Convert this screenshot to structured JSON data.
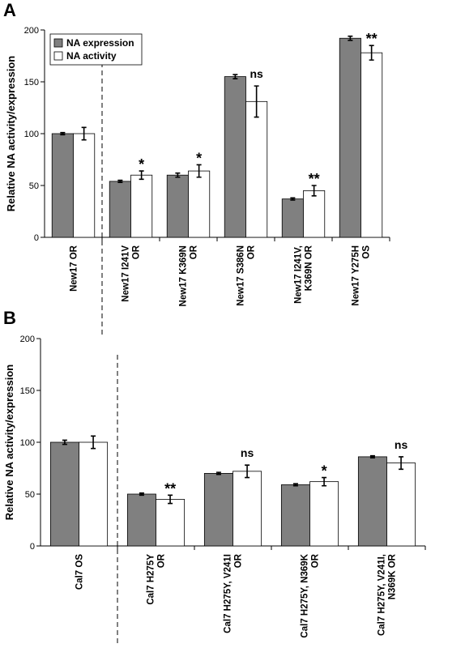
{
  "chart_data": [
    {
      "type": "bar",
      "title": "A",
      "y_label": "Relative NA activity/expression",
      "categories": [
        "New17 OR",
        "New17 I241V\nOR",
        "New17 K369N\nOR",
        "New17 S386N\nOR",
        "New17 I241V,\nK369N OR",
        "New17 Y275H\nOS"
      ],
      "series": [
        {
          "name": "NA expression",
          "color": "#808080",
          "values": [
            100,
            54,
            60,
            155,
            37,
            192
          ],
          "errors": [
            1,
            1,
            2,
            2,
            1,
            2
          ]
        },
        {
          "name": "NA activity",
          "color": "#ffffff",
          "values": [
            100,
            60,
            64,
            131,
            45,
            178
          ],
          "errors": [
            6,
            4,
            6,
            15,
            5,
            7
          ]
        }
      ],
      "annotations": [
        null,
        "*",
        "*",
        "ns",
        "**",
        "**"
      ],
      "ylim": [
        0,
        200
      ],
      "yticks": [
        0,
        50,
        100,
        150,
        200
      ],
      "legend": "upper left"
    },
    {
      "type": "bar",
      "title": "B",
      "y_label": "Relative NA activity/expression",
      "categories": [
        "Cal7 OS",
        "Cal7 H275Y\nOR",
        "Cal7 H275Y, V241I\nOR",
        "Cal7 H275Y, N369K\nOR",
        "Cal7 H275Y, V241I,\nN369K OR"
      ],
      "series": [
        {
          "name": "NA expression",
          "color": "#808080",
          "values": [
            100,
            50,
            70,
            59,
            86
          ],
          "errors": [
            2,
            1,
            1,
            1,
            1
          ]
        },
        {
          "name": "NA activity",
          "color": "#ffffff",
          "values": [
            100,
            45,
            72,
            62,
            80
          ],
          "errors": [
            6,
            4,
            6,
            4,
            6
          ]
        }
      ],
      "annotations": [
        null,
        "**",
        "ns",
        "*",
        "ns"
      ],
      "ylim": [
        0,
        200
      ],
      "yticks": [
        0,
        50,
        100,
        150,
        200
      ]
    }
  ]
}
